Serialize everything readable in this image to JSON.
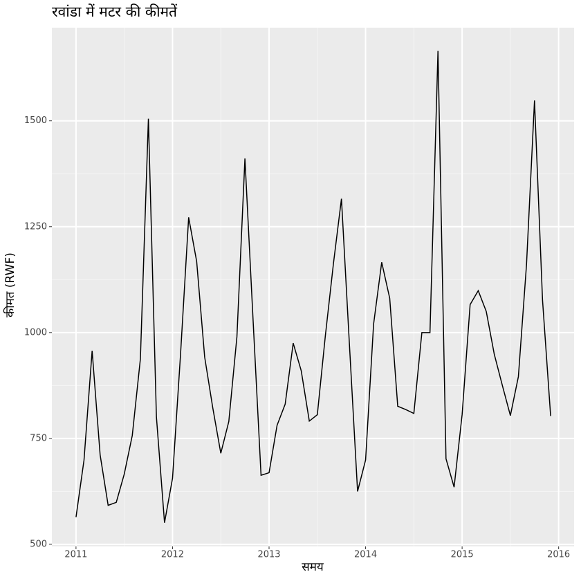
{
  "chart_data": {
    "type": "line",
    "title": "रवांडा में मटर की कीमतें",
    "x_label": "समय",
    "y_label": "कीमत (RWF)",
    "x": [
      2011,
      2011.083,
      2011.167,
      2011.25,
      2011.333,
      2011.417,
      2011.5,
      2011.583,
      2011.667,
      2011.75,
      2011.833,
      2011.917,
      2012,
      2012.083,
      2012.167,
      2012.25,
      2012.333,
      2012.417,
      2012.5,
      2012.583,
      2012.667,
      2012.75,
      2012.833,
      2012.917,
      2013,
      2013.083,
      2013.167,
      2013.25,
      2013.333,
      2013.417,
      2013.5,
      2013.583,
      2013.667,
      2013.75,
      2013.833,
      2013.917,
      2014,
      2014.083,
      2014.167,
      2014.25,
      2014.333,
      2014.417,
      2014.5,
      2014.583,
      2014.667,
      2014.75,
      2014.833,
      2014.917,
      2015,
      2015.083,
      2015.167,
      2015.25,
      2015.333,
      2015.417,
      2015.5,
      2015.583,
      2015.667,
      2015.75,
      2015.833,
      2015.917
    ],
    "series": [
      {
        "color": "#000000",
        "values": [
          564,
          699,
          957,
          711,
          592,
          599,
          666,
          757,
          938,
          1505,
          801,
          551,
          656,
          949,
          1272,
          1168,
          942,
          822,
          715,
          790,
          990,
          1411,
          1036,
          663,
          669,
          781,
          831,
          975,
          910,
          791,
          806,
          992,
          1163,
          1316,
          970,
          625,
          699,
          1020,
          1166,
          1081,
          826,
          818,
          809,
          1000,
          1000,
          1665,
          702,
          635,
          806,
          1066,
          1099,
          1050,
          949,
          875,
          804,
          896,
          1160,
          1548,
          1077,
          803
        ]
      }
    ],
    "xlim": [
      2010.75,
      2016.16
    ],
    "xticks": [
      2011,
      2012,
      2013,
      2014,
      2015,
      2016
    ],
    "ylim": [
      495,
      1720
    ],
    "yticks": [
      500,
      750,
      1000,
      1250,
      1500
    ],
    "grid": true
  }
}
